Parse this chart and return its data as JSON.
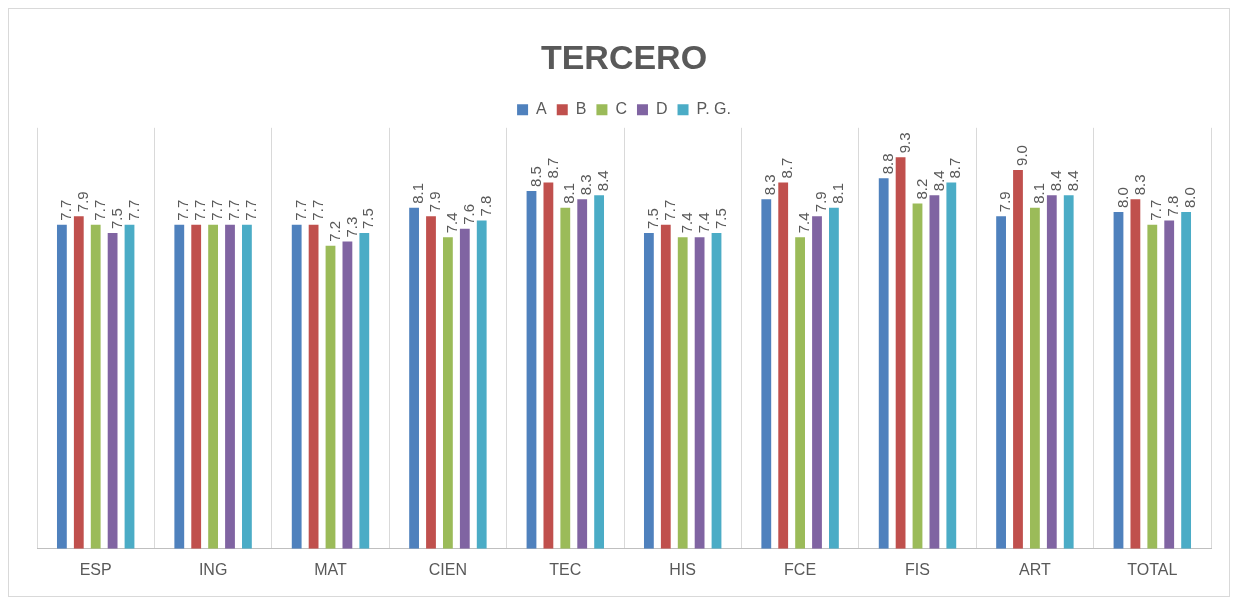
{
  "chart_data": {
    "type": "bar",
    "title": "TERCERO",
    "categories": [
      "ESP",
      "ING",
      "MAT",
      "CIEN",
      "TEC",
      "HIS",
      "FCE",
      "FIS",
      "ART",
      "TOTAL"
    ],
    "series": [
      {
        "name": "A",
        "color": "#4f81bd",
        "values": [
          7.7,
          7.7,
          7.7,
          8.1,
          8.5,
          7.5,
          8.3,
          8.8,
          7.9,
          8.0
        ],
        "value_labels": [
          "7.7",
          "7.7",
          "7.7",
          "8.1",
          "8.5",
          "7.5",
          "8.3",
          "8.8",
          "7.9",
          "8.0"
        ]
      },
      {
        "name": "B",
        "color": "#c0504d",
        "values": [
          7.9,
          7.7,
          7.7,
          7.9,
          8.7,
          7.7,
          8.7,
          9.3,
          9.0,
          8.3
        ],
        "value_labels": [
          "7.9",
          "7.7",
          "7.7",
          "7.9",
          "8.7",
          "7.7",
          "8.7",
          "9.3",
          "9.0",
          "8.3"
        ]
      },
      {
        "name": "C",
        "color": "#9bbb59",
        "values": [
          7.7,
          7.7,
          7.2,
          7.4,
          8.1,
          7.4,
          7.4,
          8.2,
          8.1,
          7.7
        ],
        "value_labels": [
          "7.7",
          "7.7",
          "7.2",
          "7.4",
          "8.1",
          "7.4",
          "7.4",
          "8.2",
          "8.1",
          "7.7"
        ]
      },
      {
        "name": "D",
        "color": "#8064a2",
        "values": [
          7.5,
          7.7,
          7.3,
          7.6,
          8.3,
          7.4,
          7.9,
          8.4,
          8.4,
          7.8
        ],
        "value_labels": [
          "7.5",
          "7.7",
          "7.3",
          "7.6",
          "8.3",
          "7.4",
          "7.9",
          "8.4",
          "8.4",
          "7.8"
        ]
      },
      {
        "name": "P. G.",
        "color": "#4bacc6",
        "values": [
          7.7,
          7.7,
          7.5,
          7.8,
          8.4,
          7.5,
          8.1,
          8.7,
          8.4,
          8.0
        ],
        "value_labels": [
          "7.7",
          "7.7",
          "7.5",
          "7.8",
          "8.4",
          "7.5",
          "8.1",
          "8.7",
          "8.4",
          "8.0"
        ]
      }
    ],
    "ylim": [
      0,
      10
    ],
    "tick_labels": "x",
    "grid": "x",
    "legend": "top"
  }
}
